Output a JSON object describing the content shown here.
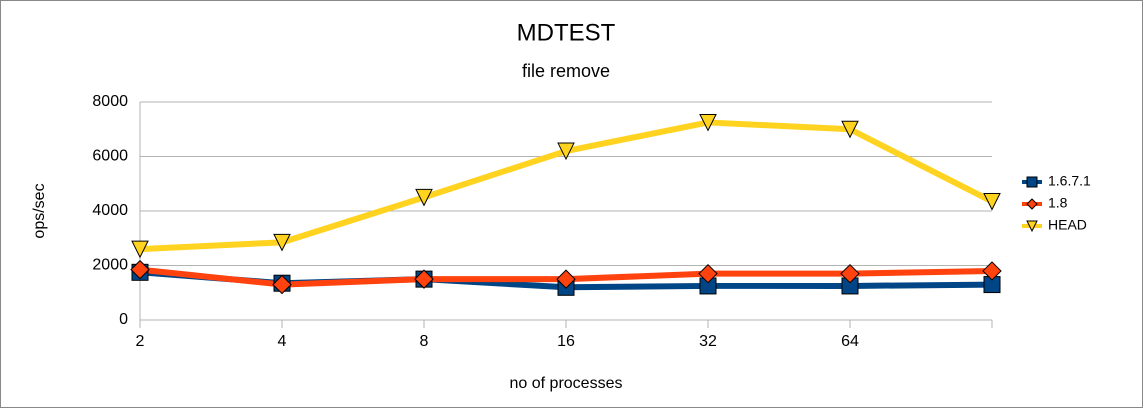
{
  "chart_data": {
    "type": "line",
    "title": "MDTEST",
    "subtitle": "file remove",
    "x_label": "no of processes",
    "y_label": "ops/sec",
    "categories": [
      "2",
      "4",
      "8",
      "16",
      "32",
      "64",
      null
    ],
    "series": [
      {
        "name": "1.6.7.1",
        "color": "#004586",
        "marker": "square",
        "values": [
          1750,
          1350,
          1500,
          1200,
          1250,
          1250,
          1300
        ]
      },
      {
        "name": "1.8",
        "color": "#ff420e",
        "marker": "diamond",
        "values": [
          1850,
          1300,
          1500,
          1500,
          1700,
          1700,
          1800
        ]
      },
      {
        "name": "HEAD",
        "color": "#ffd320",
        "marker": "triangle-down",
        "values": [
          2600,
          2850,
          4500,
          6200,
          7250,
          7000,
          4350
        ]
      }
    ],
    "ylim": [
      0,
      8000
    ],
    "yticks": [
      0,
      2000,
      4000,
      6000,
      8000
    ],
    "grid": true,
    "legend": "right"
  }
}
